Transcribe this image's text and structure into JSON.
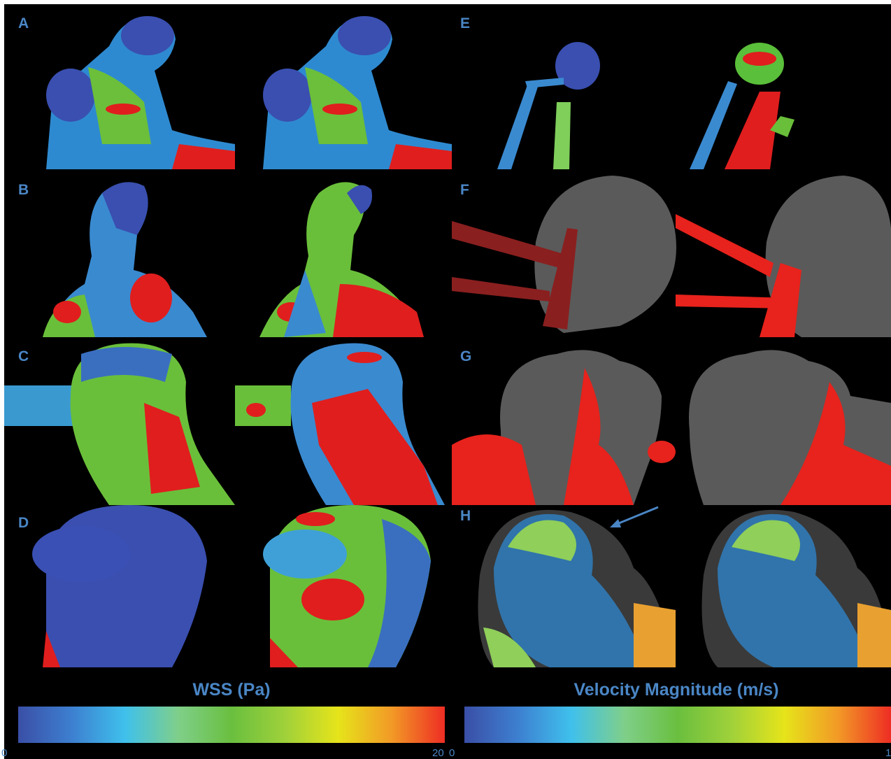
{
  "panels": {
    "a": {
      "letter": "A"
    },
    "b": {
      "letter": "B"
    },
    "c": {
      "letter": "C"
    },
    "d": {
      "letter": "D"
    },
    "e": {
      "letter": "E"
    },
    "f": {
      "letter": "F"
    },
    "g": {
      "letter": "G"
    },
    "h": {
      "letter": "H"
    }
  },
  "wss_scale": {
    "title": "WSS (Pa)",
    "min_label": "0",
    "max_label": "20",
    "colors": [
      "#3a4fa6",
      "#3d7fd0",
      "#3fc0ec",
      "#7fcf8a",
      "#6abf3f",
      "#9fd13a",
      "#e6e41a",
      "#f29a26",
      "#ee2d24"
    ]
  },
  "velocity_scale": {
    "title": "Velocity Magnitude (m/s)",
    "min_label": "0",
    "max_label": "1",
    "colors": [
      "#3a4fa6",
      "#3d7fd0",
      "#3fc0ec",
      "#7fcf8a",
      "#6abf3f",
      "#9fd13a",
      "#e6e41a",
      "#f29a26",
      "#ee2d24"
    ]
  },
  "colors": {
    "letter": "#4a86c5",
    "vessel_gray": "#5a5a5a",
    "vessel_red": "#e8221c",
    "cold": "#3a4fb0",
    "hot": "#e41e1e"
  }
}
